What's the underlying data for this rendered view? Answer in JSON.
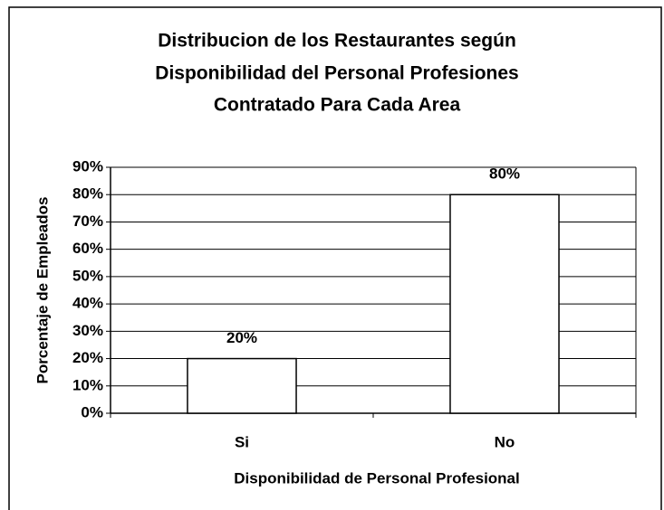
{
  "chart_data": {
    "type": "bar",
    "title": [
      "Distribucion de los Restaurantes según",
      "Disponibilidad del Personal Profesiones",
      "Contratado Para Cada Area"
    ],
    "x_label": "Disponibilidad de Personal Profesional",
    "y_label": "Porcentaje de Empleados",
    "categories": [
      "Si",
      "No"
    ],
    "values": [
      20,
      80
    ],
    "value_labels": [
      "20%",
      "80%"
    ],
    "color": "#ffffff",
    "ylim": [
      0,
      90
    ],
    "yticks": [
      {
        "value": 0,
        "label": "0%"
      },
      {
        "value": 10,
        "label": "10%"
      },
      {
        "value": 20,
        "label": "20%"
      },
      {
        "value": 30,
        "label": "30%"
      },
      {
        "value": 40,
        "label": "40%"
      },
      {
        "value": 50,
        "label": "50%"
      },
      {
        "value": 60,
        "label": "60%"
      },
      {
        "value": 70,
        "label": "70%"
      },
      {
        "value": 80,
        "label": "80%"
      },
      {
        "value": 90,
        "label": "90%"
      }
    ],
    "grid": true
  }
}
